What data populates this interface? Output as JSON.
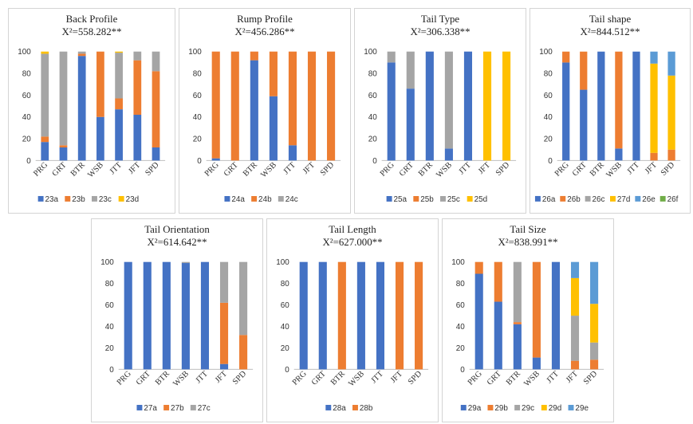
{
  "colors": {
    "a": "#4472C4",
    "b": "#ED7D31",
    "c": "#A5A5A5",
    "d": "#FFC000",
    "e": "#5B9BD5",
    "f": "#70AD47"
  },
  "chart_data": [
    {
      "type": "bar",
      "stacked": true,
      "title": "Back Profile",
      "subtitle": "X²=558.282**",
      "categories": [
        "PRG",
        "GRT",
        "BTR",
        "WSB",
        "JTT",
        "JFT",
        "SPD"
      ],
      "ylim": [
        0,
        100
      ],
      "yticks": [
        0,
        20,
        40,
        60,
        80,
        100
      ],
      "series": [
        {
          "name": "23a",
          "color": "a",
          "values": [
            17,
            12,
            96,
            40,
            47,
            42,
            12
          ]
        },
        {
          "name": "23b",
          "color": "b",
          "values": [
            5,
            2,
            2,
            60,
            10,
            50,
            70
          ]
        },
        {
          "name": "23c",
          "color": "c",
          "values": [
            76,
            86,
            2,
            0,
            42,
            8,
            18
          ]
        },
        {
          "name": "23d",
          "color": "d",
          "values": [
            2,
            0,
            0,
            0,
            1,
            0,
            0
          ]
        }
      ]
    },
    {
      "type": "bar",
      "stacked": true,
      "title": "Rump Profile",
      "subtitle": "X²=456.286**",
      "categories": [
        "PRG",
        "GRT",
        "BTR",
        "WSB",
        "JTT",
        "JFT",
        "SPD"
      ],
      "ylim": [
        0,
        100
      ],
      "yticks": [
        0,
        20,
        40,
        60,
        80,
        100
      ],
      "series": [
        {
          "name": "24a",
          "color": "a",
          "values": [
            2,
            0,
            92,
            59,
            14,
            0,
            0
          ]
        },
        {
          "name": "24b",
          "color": "b",
          "values": [
            98,
            100,
            8,
            41,
            86,
            100,
            100
          ]
        },
        {
          "name": "24c",
          "color": "c",
          "values": [
            0,
            0,
            0,
            0,
            0,
            0,
            0
          ]
        }
      ]
    },
    {
      "type": "bar",
      "stacked": true,
      "title": "Tail Type",
      "subtitle": "X²=306.338**",
      "categories": [
        "PRG",
        "GRT",
        "BTR",
        "WSB",
        "JTT",
        "JFT",
        "SPD"
      ],
      "ylim": [
        0,
        100
      ],
      "yticks": [
        0,
        20,
        40,
        60,
        80,
        100
      ],
      "series": [
        {
          "name": "25a",
          "color": "a",
          "values": [
            90,
            66,
            100,
            11,
            100,
            0,
            0
          ]
        },
        {
          "name": "25b",
          "color": "b",
          "values": [
            0,
            0,
            0,
            0,
            0,
            0,
            0
          ]
        },
        {
          "name": "25c",
          "color": "c",
          "values": [
            10,
            34,
            0,
            89,
            0,
            0,
            0
          ]
        },
        {
          "name": "25d",
          "color": "d",
          "values": [
            0,
            0,
            0,
            0,
            0,
            100,
            100
          ]
        }
      ]
    },
    {
      "type": "bar",
      "stacked": true,
      "title": "Tail shape",
      "subtitle": "X²=844.512**",
      "categories": [
        "PRG",
        "GRT",
        "BTR",
        "WSB",
        "JTT",
        "JFT",
        "SPD"
      ],
      "ylim": [
        0,
        100
      ],
      "yticks": [
        0,
        20,
        40,
        60,
        80,
        100
      ],
      "series": [
        {
          "name": "26a",
          "color": "a",
          "values": [
            90,
            65,
            100,
            11,
            100,
            0,
            0
          ]
        },
        {
          "name": "26b",
          "color": "b",
          "values": [
            10,
            35,
            0,
            89,
            0,
            7,
            10
          ]
        },
        {
          "name": "26c",
          "color": "c",
          "values": [
            0,
            0,
            0,
            0,
            0,
            0,
            0
          ]
        },
        {
          "name": "27d",
          "color": "d",
          "values": [
            0,
            0,
            0,
            0,
            0,
            82,
            68
          ]
        },
        {
          "name": "26e",
          "color": "e",
          "values": [
            0,
            0,
            0,
            0,
            0,
            11,
            22
          ]
        },
        {
          "name": "26f",
          "color": "f",
          "values": [
            0,
            0,
            0,
            0,
            0,
            0,
            0
          ]
        }
      ]
    },
    {
      "type": "bar",
      "stacked": true,
      "title": "Tail Orientation",
      "subtitle": "X²=614.642**",
      "categories": [
        "PRG",
        "GRT",
        "BTR",
        "WSB",
        "JTT",
        "JFT",
        "SPD"
      ],
      "ylim": [
        0,
        100
      ],
      "yticks": [
        0,
        20,
        40,
        60,
        80,
        100
      ],
      "series": [
        {
          "name": "27a",
          "color": "a",
          "values": [
            100,
            100,
            100,
            99,
            100,
            5,
            0
          ]
        },
        {
          "name": "27b",
          "color": "b",
          "values": [
            0,
            0,
            0,
            0,
            0,
            57,
            32
          ]
        },
        {
          "name": "27c",
          "color": "c",
          "values": [
            0,
            0,
            0,
            1,
            0,
            38,
            68
          ]
        }
      ]
    },
    {
      "type": "bar",
      "stacked": true,
      "title": "Tail Length",
      "subtitle": "X²=627.000**",
      "categories": [
        "PRG",
        "GRT",
        "BTR",
        "WSB",
        "JTT",
        "JFT",
        "SPD"
      ],
      "ylim": [
        0,
        100
      ],
      "yticks": [
        0,
        20,
        40,
        60,
        80,
        100
      ],
      "series": [
        {
          "name": "28a",
          "color": "a",
          "values": [
            100,
            100,
            0,
            100,
            100,
            0,
            0
          ]
        },
        {
          "name": "28b",
          "color": "b",
          "values": [
            0,
            0,
            100,
            0,
            0,
            100,
            100
          ]
        }
      ]
    },
    {
      "type": "bar",
      "stacked": true,
      "title": "Tail Size",
      "subtitle": "X²=838.991**",
      "categories": [
        "PRG",
        "GRT",
        "BTR",
        "WSB",
        "JTT",
        "JFT",
        "SPD"
      ],
      "ylim": [
        0,
        100
      ],
      "yticks": [
        0,
        20,
        40,
        60,
        80,
        100
      ],
      "series": [
        {
          "name": "29a",
          "color": "a",
          "values": [
            89,
            63,
            42,
            11,
            100,
            0,
            0
          ]
        },
        {
          "name": "29b",
          "color": "b",
          "values": [
            11,
            37,
            2,
            89,
            0,
            8,
            9
          ]
        },
        {
          "name": "29c",
          "color": "c",
          "values": [
            0,
            0,
            56,
            0,
            0,
            42,
            16
          ]
        },
        {
          "name": "29d",
          "color": "d",
          "values": [
            0,
            0,
            0,
            0,
            0,
            35,
            36
          ]
        },
        {
          "name": "29e",
          "color": "e",
          "values": [
            0,
            0,
            0,
            0,
            0,
            15,
            39
          ]
        }
      ]
    }
  ]
}
